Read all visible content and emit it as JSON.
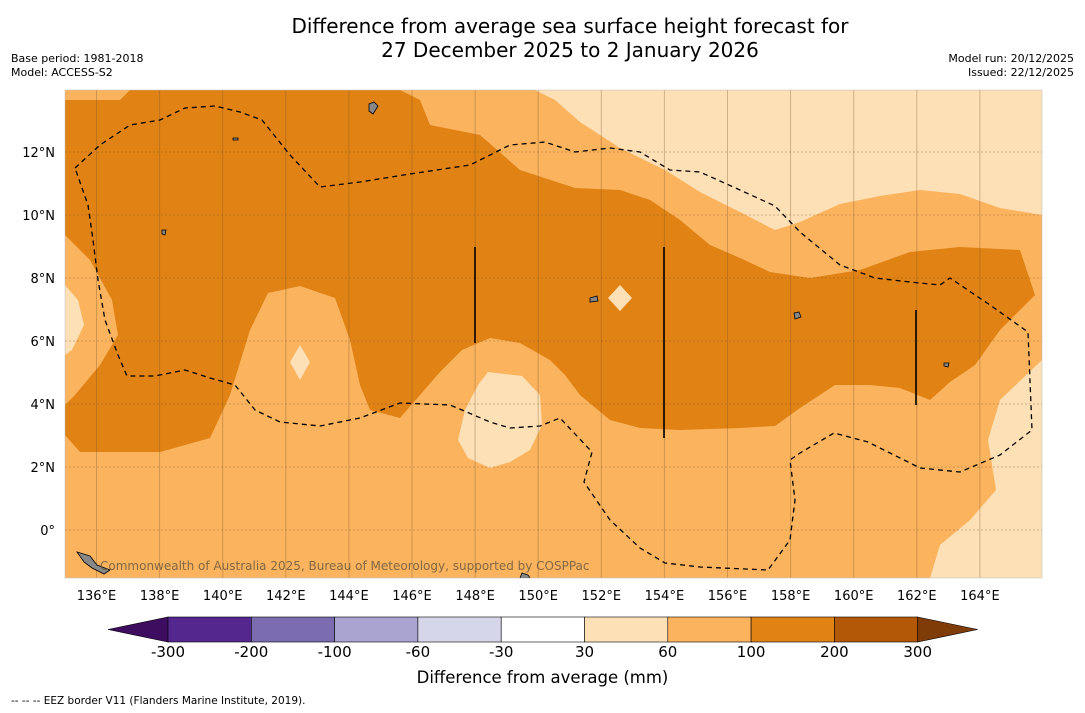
{
  "header": {
    "title_line1": "Difference from average sea surface height forecast for",
    "title_line2": "27 December 2025 to 2 January 2026",
    "base_period": "Base period: 1981-2018",
    "model": "Model: ACCESS-S2",
    "model_run": "Model run: 20/12/2025",
    "issued": "Issued: 22/12/2025"
  },
  "map": {
    "lon_labels": [
      "136°E",
      "138°E",
      "140°E",
      "142°E",
      "144°E",
      "146°E",
      "148°E",
      "150°E",
      "152°E",
      "154°E",
      "156°E",
      "158°E",
      "160°E",
      "162°E",
      "164°E"
    ],
    "lat_labels": [
      "12°N",
      "10°N",
      "8°N",
      "6°N",
      "4°N",
      "2°N",
      "0°"
    ],
    "watermark": "Commonwealth of Australia 2025, Bureau of Meteorology, supported by COSPPac",
    "legend_entry": "-- -- -- EEZ border V11 (Flanders Marine Institute, 2019)."
  },
  "colorbar": {
    "title": "Difference from average (mm)",
    "ticks": [
      "-300",
      "-200",
      "-100",
      "-60",
      "-30",
      "30",
      "60",
      "100",
      "200",
      "300"
    ],
    "colors": [
      "#3f0d60",
      "#54278f",
      "#7a6caf",
      "#aaa4d1",
      "#d6d6ea",
      "#ffffff",
      "#fee0b6",
      "#fbb35e",
      "#e08214",
      "#b35806",
      "#7f3b08"
    ]
  }
}
